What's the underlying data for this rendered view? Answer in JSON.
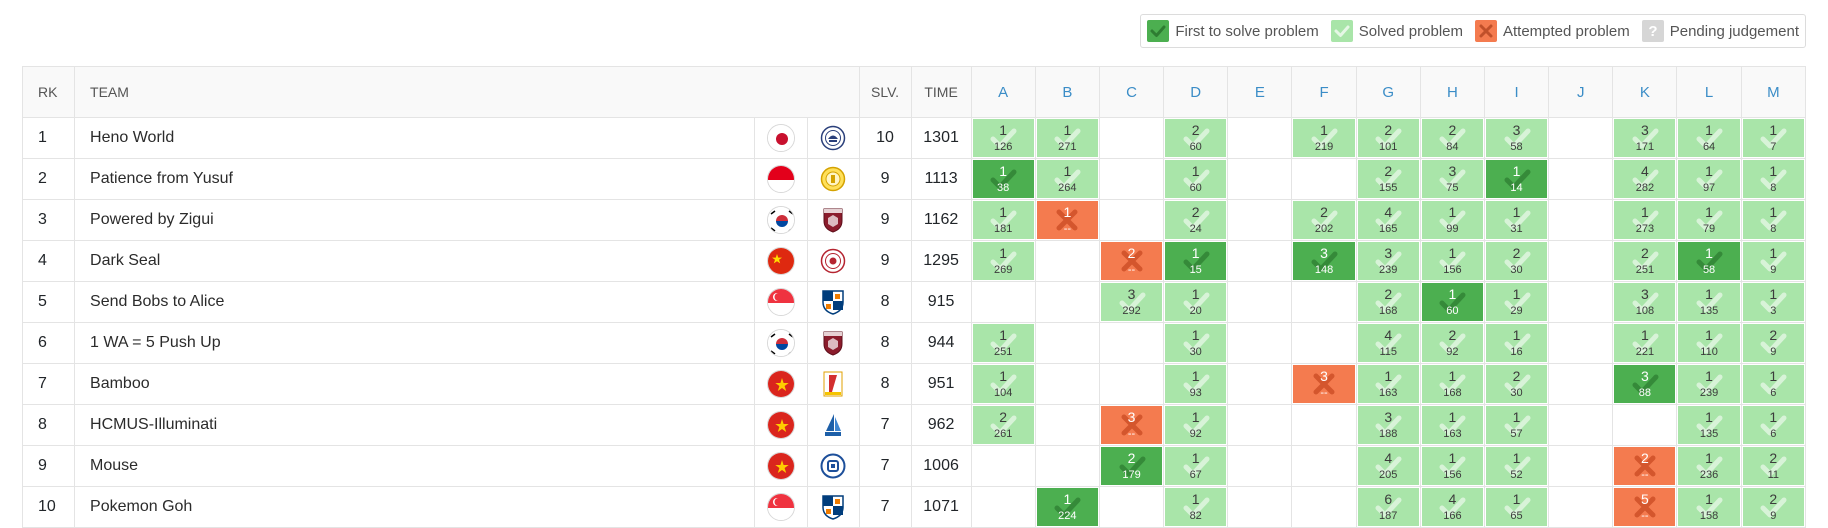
{
  "legend": [
    {
      "key": "first",
      "label": "First to solve problem"
    },
    {
      "key": "solved",
      "label": "Solved problem"
    },
    {
      "key": "attempted",
      "label": "Attempted problem"
    },
    {
      "key": "pending",
      "label": "Pending judgement"
    }
  ],
  "headers": {
    "rank": "RK",
    "team": "TEAM",
    "solved": "SLV.",
    "time": "TIME"
  },
  "problems": [
    "A",
    "B",
    "C",
    "D",
    "E",
    "F",
    "G",
    "H",
    "I",
    "J",
    "K",
    "L",
    "M"
  ],
  "colors": {
    "first": "#4caf50",
    "solved": "#a9e5a9",
    "attempted": "#f47b4f",
    "pending": "#d6d6d6",
    "problem_header": "#3b8dc7"
  },
  "teams": [
    {
      "rank": "1",
      "name": "Heno World",
      "flag": "japan-flag",
      "logo": "university-crest-icon",
      "solved": "10",
      "time": "1301",
      "results": [
        {
          "s": "solved",
          "n": "1",
          "t": "126"
        },
        {
          "s": "solved",
          "n": "1",
          "t": "271"
        },
        null,
        {
          "s": "solved",
          "n": "2",
          "t": "60"
        },
        null,
        {
          "s": "solved",
          "n": "1",
          "t": "219"
        },
        {
          "s": "solved",
          "n": "2",
          "t": "101"
        },
        {
          "s": "solved",
          "n": "2",
          "t": "84"
        },
        {
          "s": "solved",
          "n": "3",
          "t": "58"
        },
        null,
        {
          "s": "solved",
          "n": "3",
          "t": "171"
        },
        {
          "s": "solved",
          "n": "1",
          "t": "64"
        },
        {
          "s": "solved",
          "n": "1",
          "t": "7"
        }
      ]
    },
    {
      "rank": "2",
      "name": "Patience from Yusuf",
      "flag": "indonesia-flag",
      "logo": "university-seal-icon",
      "solved": "9",
      "time": "1113",
      "results": [
        {
          "s": "first",
          "n": "1",
          "t": "38"
        },
        {
          "s": "solved",
          "n": "1",
          "t": "264"
        },
        null,
        {
          "s": "solved",
          "n": "1",
          "t": "60"
        },
        null,
        null,
        {
          "s": "solved",
          "n": "2",
          "t": "155"
        },
        {
          "s": "solved",
          "n": "3",
          "t": "75"
        },
        {
          "s": "first",
          "n": "1",
          "t": "14"
        },
        null,
        {
          "s": "solved",
          "n": "4",
          "t": "282"
        },
        {
          "s": "solved",
          "n": "1",
          "t": "97"
        },
        {
          "s": "solved",
          "n": "1",
          "t": "8"
        }
      ]
    },
    {
      "rank": "3",
      "name": "Powered by Zigui",
      "flag": "korea-flag",
      "logo": "korea-university-shield-icon",
      "solved": "9",
      "time": "1162",
      "results": [
        {
          "s": "solved",
          "n": "1",
          "t": "181"
        },
        {
          "s": "attempted",
          "n": "1",
          "t": "--"
        },
        null,
        {
          "s": "solved",
          "n": "2",
          "t": "24"
        },
        null,
        {
          "s": "solved",
          "n": "2",
          "t": "202"
        },
        {
          "s": "solved",
          "n": "4",
          "t": "165"
        },
        {
          "s": "solved",
          "n": "1",
          "t": "99"
        },
        {
          "s": "solved",
          "n": "1",
          "t": "31"
        },
        null,
        {
          "s": "solved",
          "n": "1",
          "t": "273"
        },
        {
          "s": "solved",
          "n": "1",
          "t": "79"
        },
        {
          "s": "solved",
          "n": "1",
          "t": "8"
        }
      ]
    },
    {
      "rank": "4",
      "name": "Dark Seal",
      "flag": "china-flag",
      "logo": "university-round-seal-icon",
      "solved": "9",
      "time": "1295",
      "results": [
        {
          "s": "solved",
          "n": "1",
          "t": "269"
        },
        null,
        {
          "s": "attempted",
          "n": "2",
          "t": "--"
        },
        {
          "s": "first",
          "n": "1",
          "t": "15"
        },
        null,
        {
          "s": "first",
          "n": "3",
          "t": "148"
        },
        {
          "s": "solved",
          "n": "3",
          "t": "239"
        },
        {
          "s": "solved",
          "n": "1",
          "t": "156"
        },
        {
          "s": "solved",
          "n": "2",
          "t": "30"
        },
        null,
        {
          "s": "solved",
          "n": "2",
          "t": "251"
        },
        {
          "s": "first",
          "n": "1",
          "t": "58"
        },
        {
          "s": "solved",
          "n": "1",
          "t": "9"
        }
      ]
    },
    {
      "rank": "5",
      "name": "Send Bobs to Alice",
      "flag": "singapore-flag",
      "logo": "nus-shield-icon",
      "solved": "8",
      "time": "915",
      "results": [
        null,
        null,
        {
          "s": "solved",
          "n": "3",
          "t": "292"
        },
        {
          "s": "solved",
          "n": "1",
          "t": "20"
        },
        null,
        null,
        {
          "s": "solved",
          "n": "2",
          "t": "168"
        },
        {
          "s": "first",
          "n": "1",
          "t": "60"
        },
        {
          "s": "solved",
          "n": "1",
          "t": "29"
        },
        null,
        {
          "s": "solved",
          "n": "3",
          "t": "108"
        },
        {
          "s": "solved",
          "n": "1",
          "t": "135"
        },
        {
          "s": "solved",
          "n": "1",
          "t": "3"
        }
      ]
    },
    {
      "rank": "6",
      "name": "1 WA = 5 Push Up",
      "flag": "korea-flag",
      "logo": "korea-university-shield-icon",
      "solved": "8",
      "time": "944",
      "results": [
        {
          "s": "solved",
          "n": "1",
          "t": "251"
        },
        null,
        null,
        {
          "s": "solved",
          "n": "1",
          "t": "30"
        },
        null,
        null,
        {
          "s": "solved",
          "n": "4",
          "t": "115"
        },
        {
          "s": "solved",
          "n": "2",
          "t": "92"
        },
        {
          "s": "solved",
          "n": "1",
          "t": "16"
        },
        null,
        {
          "s": "solved",
          "n": "1",
          "t": "221"
        },
        {
          "s": "solved",
          "n": "1",
          "t": "110"
        },
        {
          "s": "solved",
          "n": "2",
          "t": "9"
        }
      ]
    },
    {
      "rank": "7",
      "name": "Bamboo",
      "flag": "vietnam-flag",
      "logo": "university-logo-icon",
      "solved": "8",
      "time": "951",
      "results": [
        {
          "s": "solved",
          "n": "1",
          "t": "104"
        },
        null,
        null,
        {
          "s": "solved",
          "n": "1",
          "t": "93"
        },
        null,
        {
          "s": "attempted",
          "n": "3",
          "t": "--"
        },
        {
          "s": "solved",
          "n": "1",
          "t": "163"
        },
        {
          "s": "solved",
          "n": "1",
          "t": "168"
        },
        {
          "s": "solved",
          "n": "2",
          "t": "30"
        },
        null,
        {
          "s": "first",
          "n": "3",
          "t": "88"
        },
        {
          "s": "solved",
          "n": "1",
          "t": "239"
        },
        {
          "s": "solved",
          "n": "1",
          "t": "6"
        }
      ]
    },
    {
      "rank": "8",
      "name": "HCMUS-Illuminati",
      "flag": "vietnam-flag",
      "logo": "hcmus-logo-icon",
      "solved": "7",
      "time": "962",
      "results": [
        {
          "s": "solved",
          "n": "2",
          "t": "261"
        },
        null,
        {
          "s": "attempted",
          "n": "3",
          "t": "--"
        },
        {
          "s": "solved",
          "n": "1",
          "t": "92"
        },
        null,
        null,
        {
          "s": "solved",
          "n": "3",
          "t": "188"
        },
        {
          "s": "solved",
          "n": "1",
          "t": "163"
        },
        {
          "s": "solved",
          "n": "1",
          "t": "57"
        },
        null,
        null,
        {
          "s": "solved",
          "n": "1",
          "t": "135"
        },
        {
          "s": "solved",
          "n": "1",
          "t": "6"
        }
      ]
    },
    {
      "rank": "9",
      "name": "Mouse",
      "flag": "vietnam-flag",
      "logo": "university-circle-logo-icon",
      "solved": "7",
      "time": "1006",
      "results": [
        null,
        null,
        {
          "s": "first",
          "n": "2",
          "t": "179"
        },
        {
          "s": "solved",
          "n": "1",
          "t": "67"
        },
        null,
        null,
        {
          "s": "solved",
          "n": "4",
          "t": "205"
        },
        {
          "s": "solved",
          "n": "1",
          "t": "156"
        },
        {
          "s": "solved",
          "n": "1",
          "t": "52"
        },
        null,
        {
          "s": "attempted",
          "n": "2",
          "t": "--"
        },
        {
          "s": "solved",
          "n": "1",
          "t": "236"
        },
        {
          "s": "solved",
          "n": "2",
          "t": "11"
        }
      ]
    },
    {
      "rank": "10",
      "name": "Pokemon Goh",
      "flag": "singapore-flag",
      "logo": "nus-shield-icon",
      "solved": "7",
      "time": "1071",
      "results": [
        null,
        {
          "s": "first",
          "n": "1",
          "t": "224"
        },
        null,
        {
          "s": "solved",
          "n": "1",
          "t": "82"
        },
        null,
        null,
        {
          "s": "solved",
          "n": "6",
          "t": "187"
        },
        {
          "s": "solved",
          "n": "4",
          "t": "166"
        },
        {
          "s": "solved",
          "n": "1",
          "t": "65"
        },
        null,
        {
          "s": "attempted",
          "n": "5",
          "t": "--"
        },
        {
          "s": "solved",
          "n": "1",
          "t": "158"
        },
        {
          "s": "solved",
          "n": "2",
          "t": "9"
        }
      ]
    }
  ]
}
